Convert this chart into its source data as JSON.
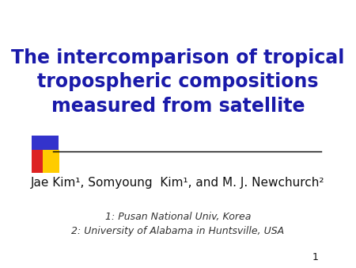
{
  "title_line1": "The intercomparison of tropical",
  "title_line2": "tropospheric compositions",
  "title_line3": "measured from satellite",
  "title_color": "#1a1aaa",
  "author_line": "Jae Kim¹, Somyoung  Kim¹, and M. J. Newchurch²",
  "affil1": "1: Pusan National Univ, Korea",
  "affil2": "2: University of Alabama in Huntsville, USA",
  "slide_number": "1",
  "bg_color": "#ffffff",
  "divider_color": "#000000",
  "logo_blue": "#3333cc",
  "logo_red": "#dd2222",
  "logo_yellow": "#ffcc00",
  "title_fontsize": 17,
  "author_fontsize": 11,
  "affil_fontsize": 9
}
